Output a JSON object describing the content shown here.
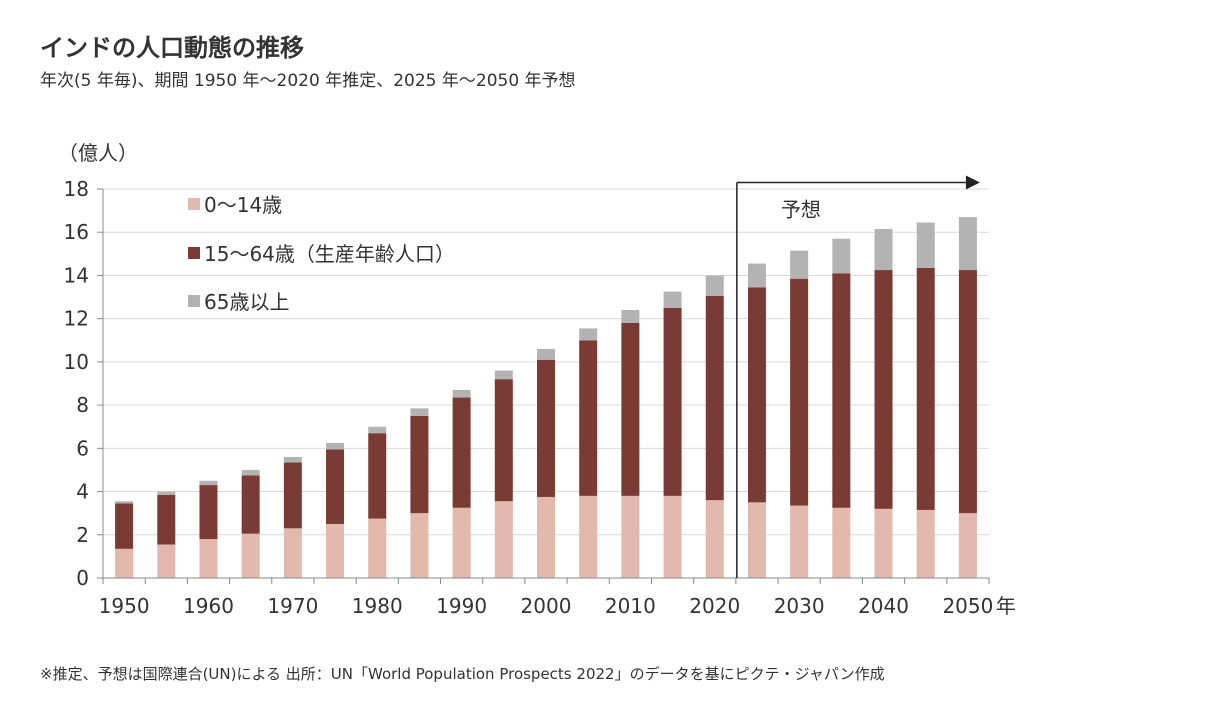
{
  "header": {
    "title": "インドの人口動態の推移",
    "subtitle": "年次(5 年毎)、期間 1950 年～2020 年推定、2025 年～2050 年予想"
  },
  "footnote": "※推定、予想は国際連合(UN)による 出所：UN「World Population Prospects 2022」のデータを基にピクテ・ジャパン作成",
  "chart_data": {
    "type": "bar",
    "stacked": true,
    "categories": [
      "1950",
      "1955",
      "1960",
      "1965",
      "1970",
      "1975",
      "1980",
      "1985",
      "1990",
      "1995",
      "2000",
      "2005",
      "2010",
      "2015",
      "2020",
      "2025",
      "2030",
      "2035",
      "2040",
      "2045",
      "2050"
    ],
    "x_tick_labels": [
      "1950",
      "1960",
      "1970",
      "1980",
      "1990",
      "2000",
      "2010",
      "2020",
      "2030",
      "2040",
      "2050"
    ],
    "xlabel": "年",
    "ylabel": "（億人）",
    "ylim": [
      0,
      18
    ],
    "y_ticks": [
      0,
      2,
      4,
      6,
      8,
      10,
      12,
      14,
      16,
      18
    ],
    "grid": true,
    "legend_position": "top-left",
    "series": [
      {
        "name": "0～14歳",
        "color": "#e3b9ae",
        "values": [
          1.35,
          1.55,
          1.8,
          2.05,
          2.3,
          2.5,
          2.75,
          3.0,
          3.25,
          3.55,
          3.75,
          3.8,
          3.8,
          3.8,
          3.6,
          3.5,
          3.35,
          3.25,
          3.2,
          3.15,
          3.0
        ]
      },
      {
        "name": "15～64歳（生産年齢人口）",
        "color": "#7b3b35",
        "values": [
          2.1,
          2.3,
          2.5,
          2.7,
          3.05,
          3.45,
          3.95,
          4.5,
          5.1,
          5.65,
          6.35,
          7.2,
          8.0,
          8.7,
          9.45,
          9.95,
          10.5,
          10.85,
          11.05,
          11.2,
          11.25
        ]
      },
      {
        "name": "65歳以上",
        "color": "#b3b3b3",
        "values": [
          0.1,
          0.15,
          0.2,
          0.25,
          0.25,
          0.3,
          0.3,
          0.35,
          0.35,
          0.4,
          0.5,
          0.55,
          0.6,
          0.75,
          0.95,
          1.1,
          1.3,
          1.6,
          1.9,
          2.1,
          2.45
        ]
      }
    ],
    "annotations": [
      {
        "text": "予想",
        "start_category": "2025",
        "end_category": "2050",
        "arrow": true
      }
    ]
  }
}
